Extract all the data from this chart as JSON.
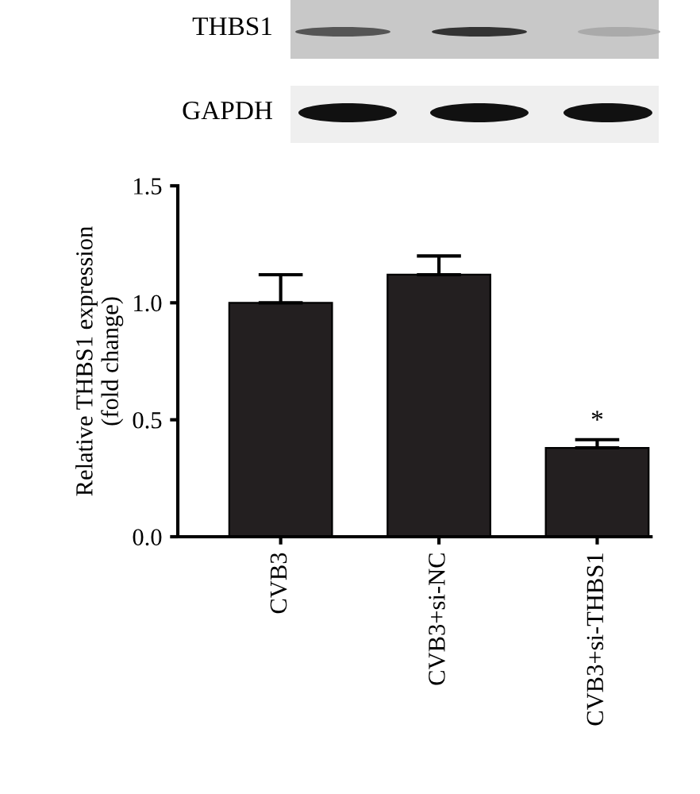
{
  "chart_data": {
    "type": "bar",
    "ylabel": "Relative THBS1 expression\n(fold change)",
    "categories": [
      "CVB3",
      "CVB3+si-NC",
      "CVB3+si-THBS1"
    ],
    "values": [
      1.0,
      1.12,
      0.38
    ],
    "errors": [
      0.12,
      0.08,
      0.035
    ],
    "color": "#231f20",
    "ylim": [
      0,
      1.5
    ],
    "yticks": [
      {
        "value": 0,
        "label": "0.0"
      },
      0.5,
      {
        "value": 1,
        "label": "1.0"
      },
      1.5
    ],
    "annotations": [
      "THBS1",
      "GAPDH",
      {
        "text": "*",
        "x": "CVB3+si-THBS1",
        "y": 0.44
      }
    ]
  }
}
